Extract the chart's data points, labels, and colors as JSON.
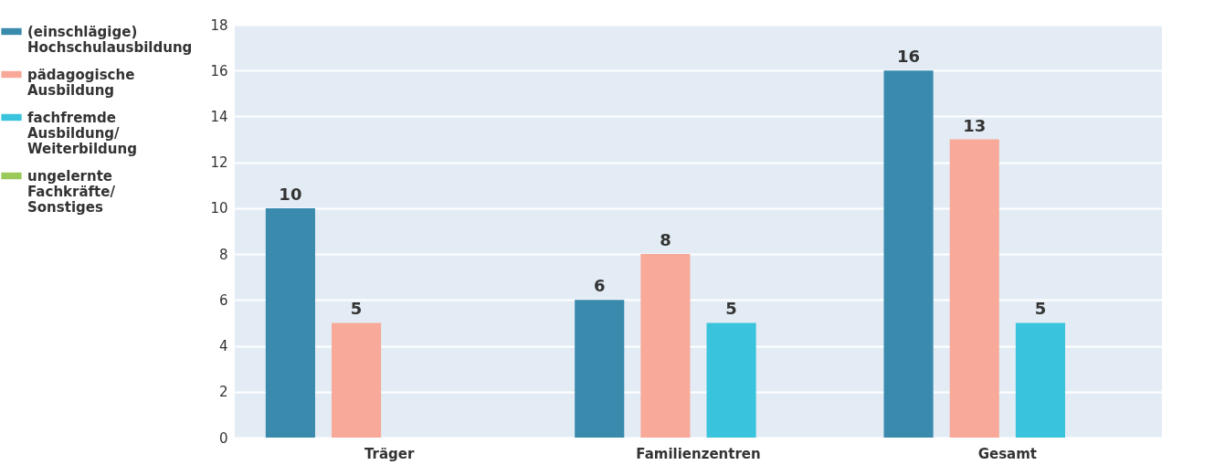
{
  "chart_data": {
    "type": "bar",
    "categories": [
      "Träger",
      "Familienzentren",
      "Gesamt"
    ],
    "series": [
      {
        "name": "(einschlägige) Hochschulausbildung",
        "color": "#3a8aae",
        "values": [
          10,
          6,
          16
        ]
      },
      {
        "name": "pädagogische Ausbildung",
        "color": "#f8a999",
        "values": [
          5,
          8,
          13
        ]
      },
      {
        "name": "fachfremde Ausbildung/Weiterbildung",
        "color": "#3ac3dc",
        "values": [
          null,
          5,
          5
        ]
      },
      {
        "name": "ungelernte Fachkräfte/Sonstiges",
        "color": "#9bc95a",
        "values": [
          null,
          null,
          null
        ]
      }
    ],
    "ylim": [
      0,
      18
    ],
    "yticks": [
      0,
      2,
      4,
      6,
      8,
      10,
      12,
      14,
      16,
      18
    ],
    "grid": "y",
    "legend": "left",
    "data_labels": true
  }
}
